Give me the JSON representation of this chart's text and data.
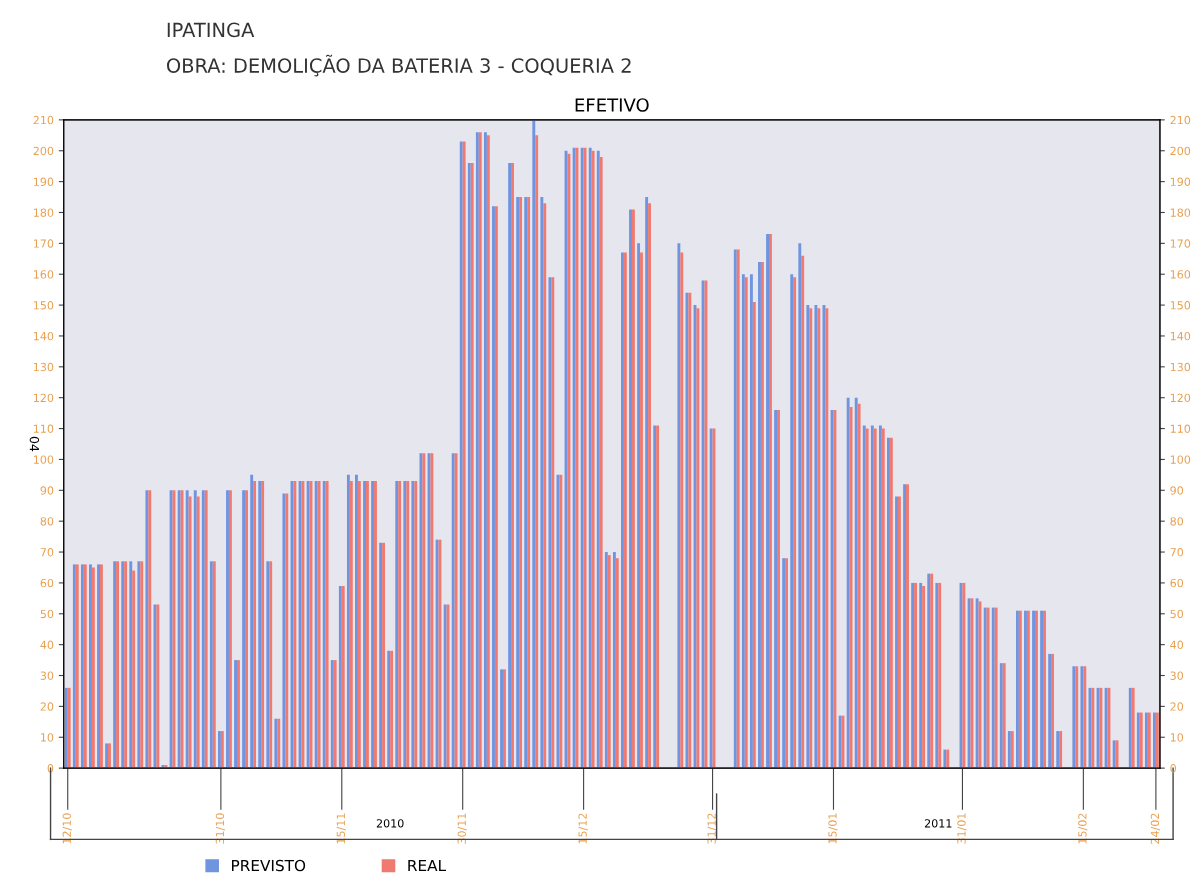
{
  "chart_data": {
    "type": "bar",
    "title": "EFETIVO",
    "ylabel": "04",
    "annotations": [
      "IPATINGA",
      "OBRA: DEMOLIÇÃO DA BATERIA 3 - COQUERIA 2",
      "2010",
      "2011"
    ],
    "x": [
      "2010-10-12",
      "2010-10-13",
      "2010-10-14",
      "2010-10-15",
      "2010-10-16",
      "2010-10-17",
      "2010-10-18",
      "2010-10-19",
      "2010-10-20",
      "2010-10-21",
      "2010-10-22",
      "2010-10-23",
      "2010-10-24",
      "2010-10-25",
      "2010-10-26",
      "2010-10-27",
      "2010-10-28",
      "2010-10-29",
      "2010-10-30",
      "2010-10-31",
      "2010-11-01",
      "2010-11-02",
      "2010-11-03",
      "2010-11-04",
      "2010-11-05",
      "2010-11-06",
      "2010-11-07",
      "2010-11-08",
      "2010-11-09",
      "2010-11-10",
      "2010-11-11",
      "2010-11-12",
      "2010-11-13",
      "2010-11-14",
      "2010-11-15",
      "2010-11-16",
      "2010-11-17",
      "2010-11-18",
      "2010-11-19",
      "2010-11-20",
      "2010-11-21",
      "2010-11-22",
      "2010-11-23",
      "2010-11-24",
      "2010-11-25",
      "2010-11-26",
      "2010-11-27",
      "2010-11-28",
      "2010-11-29",
      "2010-11-30",
      "2010-12-01",
      "2010-12-02",
      "2010-12-03",
      "2010-12-04",
      "2010-12-05",
      "2010-12-06",
      "2010-12-07",
      "2010-12-08",
      "2010-12-09",
      "2010-12-10",
      "2010-12-11",
      "2010-12-12",
      "2010-12-13",
      "2010-12-14",
      "2010-12-15",
      "2010-12-16",
      "2010-12-17",
      "2010-12-18",
      "2010-12-19",
      "2010-12-20",
      "2010-12-21",
      "2010-12-22",
      "2010-12-23",
      "2010-12-24",
      "2010-12-25",
      "2010-12-26",
      "2010-12-27",
      "2010-12-28",
      "2010-12-29",
      "2010-12-30",
      "2010-12-31",
      "2011-01-01",
      "2011-01-02",
      "2011-01-03",
      "2011-01-04",
      "2011-01-05",
      "2011-01-06",
      "2011-01-07",
      "2011-01-08",
      "2011-01-09",
      "2011-01-10",
      "2011-01-11",
      "2011-01-12",
      "2011-01-13",
      "2011-01-14",
      "2011-01-15",
      "2011-01-16",
      "2011-01-17",
      "2011-01-18",
      "2011-01-19",
      "2011-01-20",
      "2011-01-21",
      "2011-01-22",
      "2011-01-23",
      "2011-01-24",
      "2011-01-25",
      "2011-01-26",
      "2011-01-27",
      "2011-01-28",
      "2011-01-29",
      "2011-01-30",
      "2011-01-31",
      "2011-02-01",
      "2011-02-02",
      "2011-02-03",
      "2011-02-04",
      "2011-02-05",
      "2011-02-06",
      "2011-02-07",
      "2011-02-08",
      "2011-02-09",
      "2011-02-10",
      "2011-02-11",
      "2011-02-12",
      "2011-02-13",
      "2011-02-14",
      "2011-02-15",
      "2011-02-16",
      "2011-02-17",
      "2011-02-18",
      "2011-02-19",
      "2011-02-20",
      "2011-02-21",
      "2011-02-22",
      "2011-02-23",
      "2011-02-24"
    ],
    "series": [
      {
        "name": "PREVISTO",
        "color": "#6f95e0",
        "values": [
          26,
          66,
          66,
          66,
          66,
          8,
          67,
          67,
          67,
          67,
          90,
          53,
          1,
          90,
          90,
          90,
          90,
          90,
          67,
          12,
          90,
          35,
          90,
          95,
          93,
          67,
          16,
          89,
          93,
          93,
          93,
          93,
          93,
          35,
          59,
          95,
          95,
          93,
          93,
          73,
          38,
          93,
          93,
          93,
          102,
          102,
          74,
          53,
          102,
          203,
          196,
          206,
          206,
          182,
          32,
          196,
          185,
          185,
          210,
          185,
          159,
          95,
          200,
          201,
          201,
          201,
          200,
          70,
          70,
          167,
          181,
          170,
          185,
          111,
          null,
          null,
          170,
          154,
          150,
          158,
          110,
          null,
          null,
          168,
          160,
          160,
          164,
          173,
          116,
          68,
          160,
          170,
          150,
          150,
          150,
          116,
          17,
          120,
          120,
          111,
          111,
          111,
          107,
          88,
          92,
          60,
          60,
          63,
          60,
          6,
          null,
          60,
          55,
          55,
          52,
          52,
          34,
          12,
          51,
          51,
          51,
          51,
          37,
          12,
          null,
          33,
          33,
          26,
          26,
          26,
          9,
          null,
          26,
          18,
          18,
          18
        ]
      },
      {
        "name": "REAL",
        "color": "#f07a6f",
        "values": [
          26,
          66,
          66,
          65,
          66,
          8,
          67,
          67,
          64,
          67,
          90,
          53,
          1,
          90,
          90,
          88,
          88,
          90,
          67,
          12,
          90,
          35,
          90,
          93,
          93,
          67,
          16,
          89,
          93,
          93,
          93,
          93,
          93,
          35,
          59,
          93,
          93,
          93,
          93,
          73,
          38,
          93,
          93,
          93,
          102,
          102,
          74,
          53,
          102,
          203,
          196,
          206,
          205,
          182,
          32,
          196,
          185,
          185,
          205,
          183,
          159,
          95,
          199,
          201,
          201,
          200,
          198,
          69,
          68,
          167,
          181,
          167,
          183,
          111,
          null,
          null,
          167,
          154,
          149,
          158,
          110,
          null,
          null,
          168,
          159,
          151,
          164,
          173,
          116,
          68,
          159,
          166,
          149,
          149,
          149,
          116,
          17,
          117,
          118,
          110,
          110,
          110,
          107,
          88,
          92,
          60,
          59,
          63,
          60,
          6,
          null,
          60,
          55,
          54,
          52,
          52,
          34,
          12,
          51,
          51,
          51,
          51,
          37,
          12,
          null,
          33,
          33,
          26,
          26,
          26,
          9,
          null,
          26,
          18,
          18,
          18
        ]
      }
    ],
    "xlim": [
      "2010-10-11T12:00",
      "2011-02-24T12:00"
    ],
    "xticks": [
      {
        "value": "2010-10-12",
        "label": "12/10"
      },
      {
        "value": "2010-10-31",
        "label": "31/10"
      },
      {
        "value": "2010-11-15",
        "label": "15/11"
      },
      {
        "value": "2010-11-30",
        "label": "30/11"
      },
      {
        "value": "2010-12-15",
        "label": "15/12"
      },
      {
        "value": "2010-12-31",
        "label": "31/12"
      },
      {
        "value": "2011-01-15",
        "label": "15/01"
      },
      {
        "value": "2011-01-31",
        "label": "31/01"
      },
      {
        "value": "2011-02-15",
        "label": "15/02"
      },
      {
        "value": "2011-02-24",
        "label": "24/02"
      }
    ],
    "ylim": [
      0,
      210
    ],
    "yticks": [
      0,
      10,
      20,
      30,
      40,
      50,
      60,
      70,
      80,
      90,
      100,
      110,
      120,
      130,
      140,
      150,
      160,
      170,
      180,
      190,
      200,
      210
    ],
    "y2lim": [
      0,
      210
    ],
    "y2ticks": [
      0,
      10,
      20,
      30,
      40,
      50,
      60,
      70,
      80,
      90,
      100,
      110,
      120,
      130,
      140,
      150,
      160,
      170,
      180,
      190,
      200,
      210
    ],
    "grid": false,
    "legend": "bottom"
  }
}
